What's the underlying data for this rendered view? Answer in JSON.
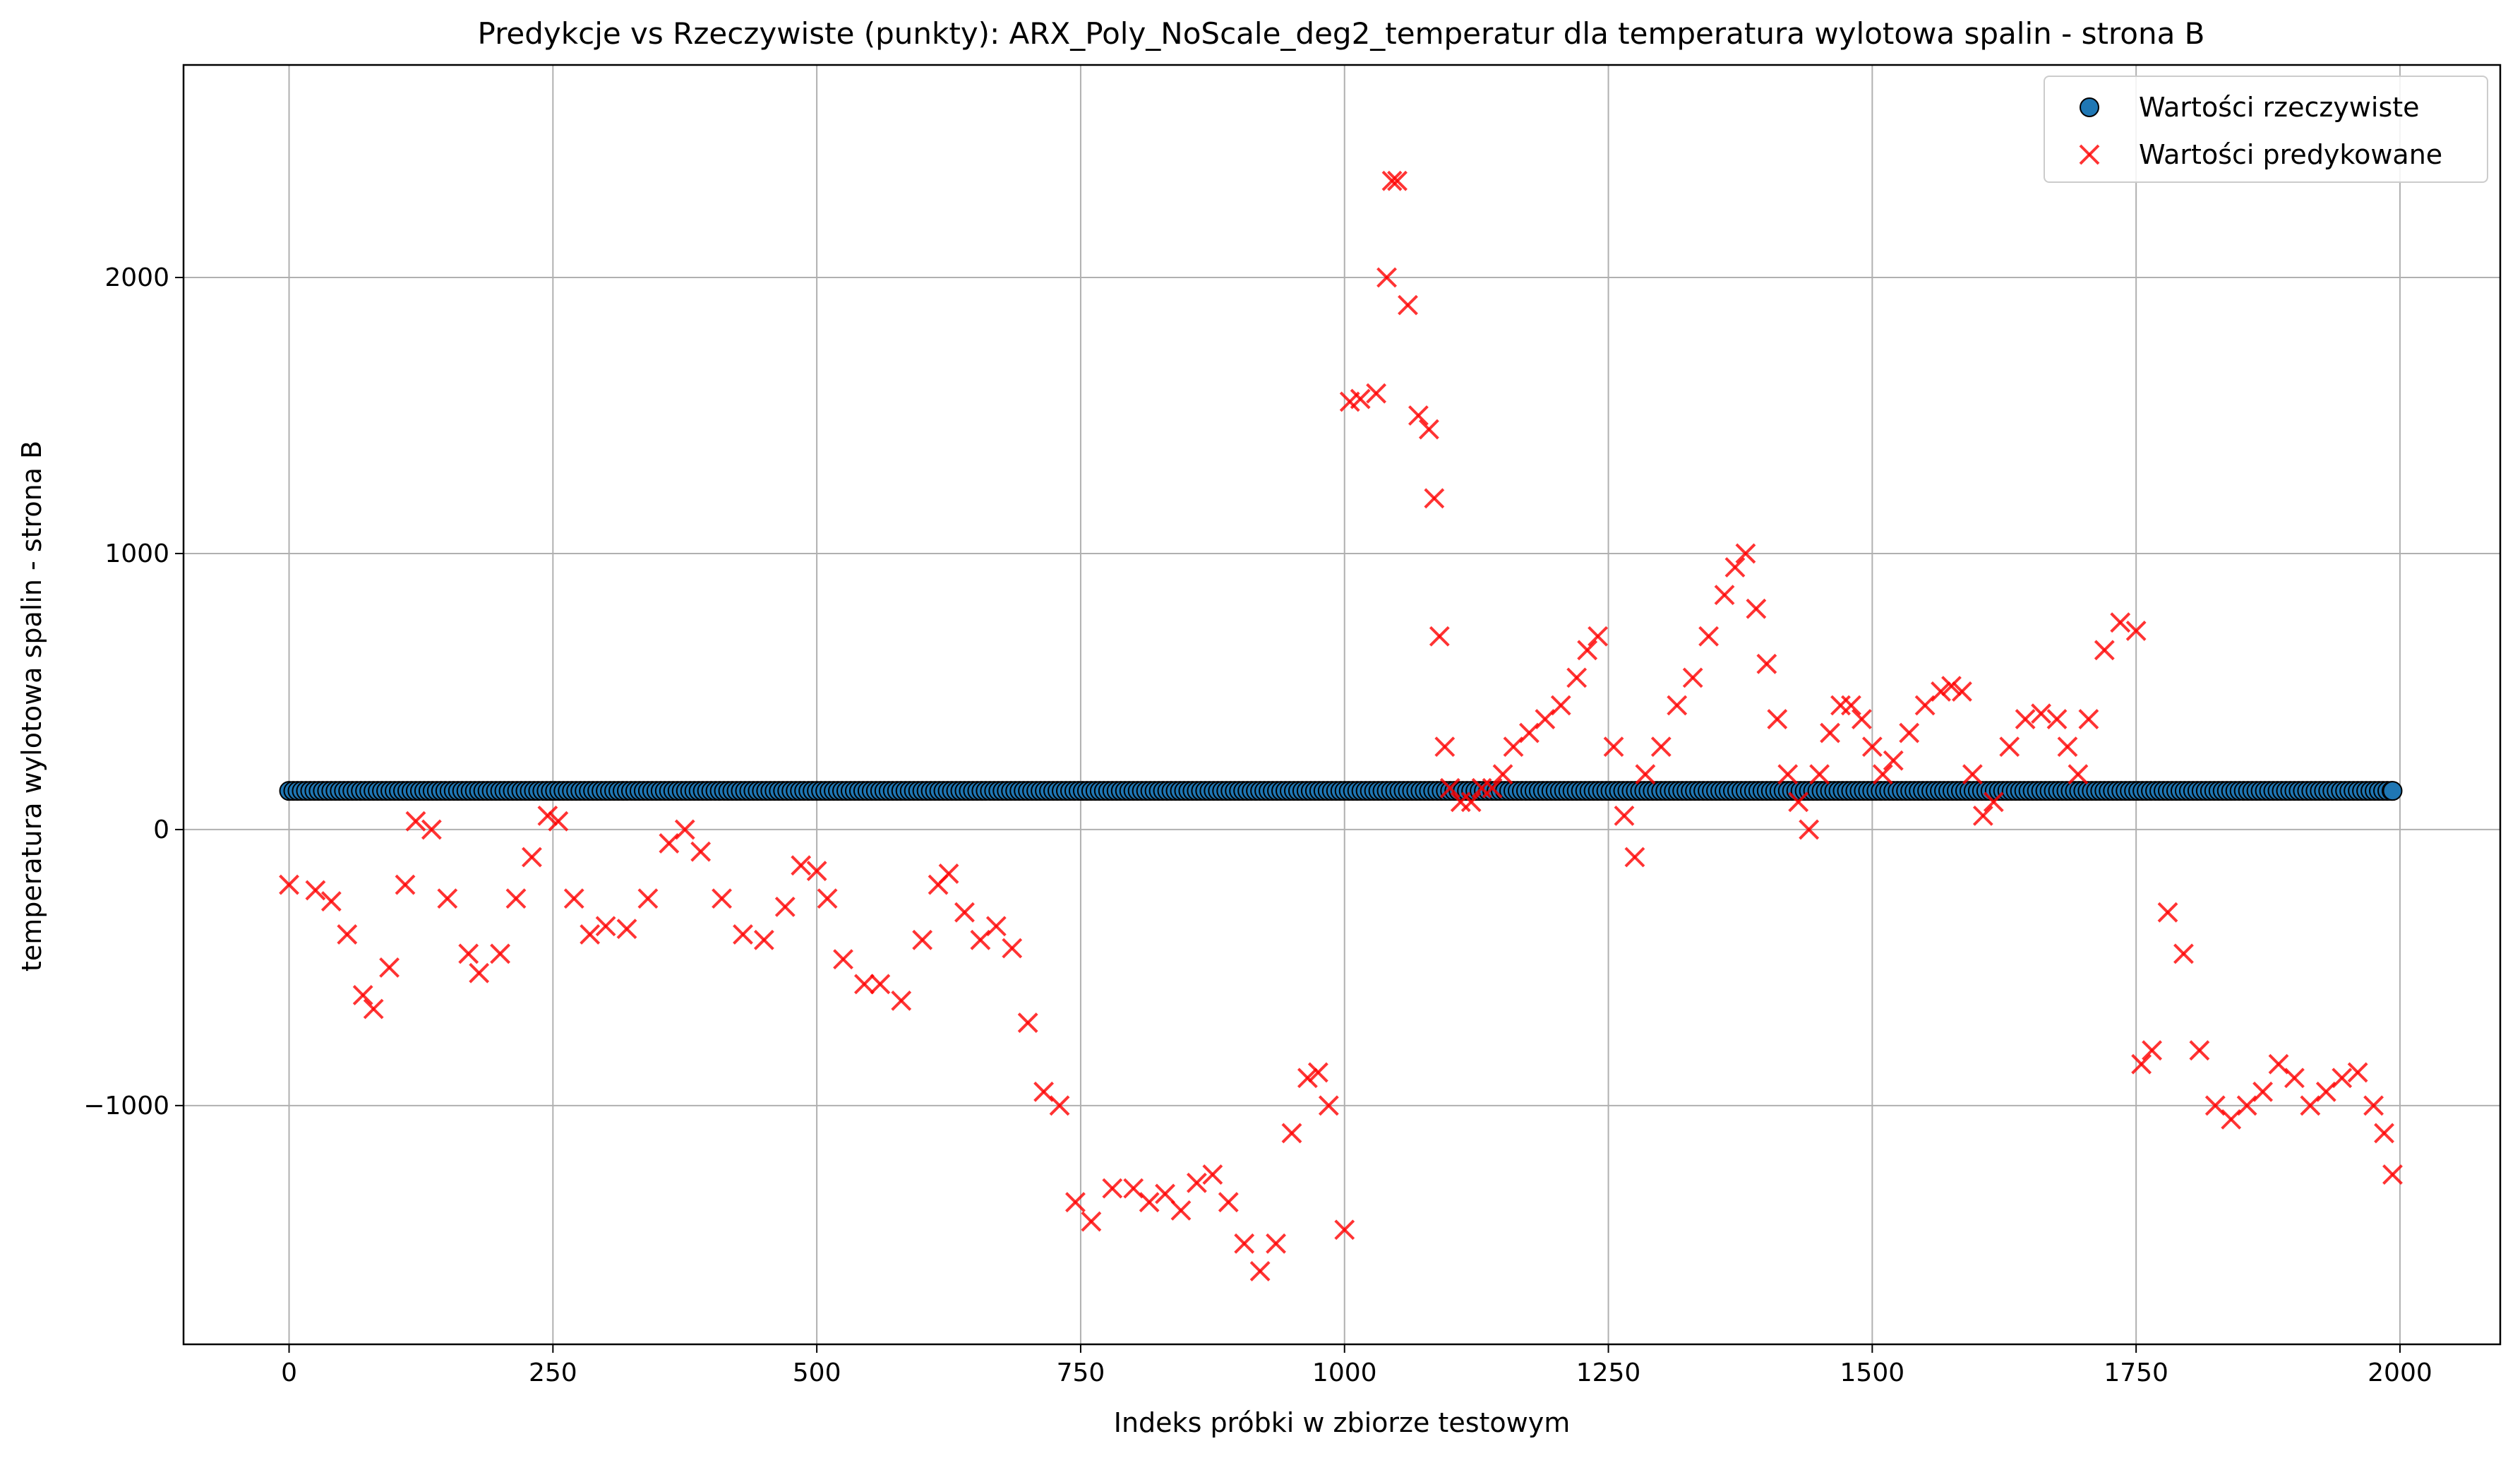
{
  "chart_data": {
    "type": "scatter",
    "title": "Predykcje vs Rzeczywiste (punkty): ARX_Poly_NoScale_deg2_temperatur dla temperatura wylotowa spalin - strona B",
    "xlabel": "Indeks próbki w zbiorze testowym",
    "ylabel": "temperatura wylotowa spalin - strona B",
    "xlim": [
      -100,
      2095
    ],
    "ylim": [
      -1865,
      2770
    ],
    "xticks": [
      0,
      250,
      500,
      750,
      1000,
      1250,
      1500,
      1750,
      2000
    ],
    "yticks": [
      -1000,
      0,
      1000,
      2000
    ],
    "xtick_labels": [
      "0",
      "250",
      "500",
      "750",
      "1000",
      "1250",
      "1500",
      "1750",
      "2000"
    ],
    "ytick_labels": [
      "−1000",
      "0",
      "1000",
      "2000"
    ],
    "grid": true,
    "legend_position": "top-right",
    "n_points": 1994,
    "series": [
      {
        "name": "Wartości rzeczywiste",
        "marker": "circle",
        "color": "#1f77b4",
        "edge_color": "#000000",
        "x_range": [
          0,
          1993
        ],
        "constant_y": 140
      },
      {
        "name": "Wartości predykowane",
        "marker": "x",
        "color": "#ff0000",
        "alpha": 0.8,
        "x": [
          0,
          25,
          40,
          55,
          70,
          80,
          95,
          110,
          120,
          135,
          150,
          170,
          180,
          200,
          215,
          230,
          245,
          255,
          270,
          285,
          300,
          320,
          340,
          360,
          375,
          390,
          410,
          430,
          450,
          470,
          485,
          500,
          510,
          525,
          545,
          560,
          580,
          600,
          615,
          625,
          640,
          655,
          670,
          685,
          700,
          715,
          730,
          745,
          760,
          780,
          800,
          815,
          830,
          845,
          860,
          875,
          890,
          905,
          920,
          935,
          950,
          965,
          975,
          985,
          1000,
          1005,
          1015,
          1030,
          1040,
          1045,
          1050,
          1060,
          1070,
          1080,
          1085,
          1090,
          1095,
          1100,
          1110,
          1120,
          1130,
          1140,
          1150,
          1160,
          1175,
          1190,
          1205,
          1220,
          1230,
          1240,
          1255,
          1265,
          1275,
          1285,
          1300,
          1315,
          1330,
          1345,
          1360,
          1370,
          1380,
          1390,
          1400,
          1410,
          1420,
          1430,
          1440,
          1450,
          1460,
          1470,
          1480,
          1490,
          1500,
          1510,
          1520,
          1535,
          1550,
          1565,
          1575,
          1585,
          1595,
          1605,
          1615,
          1630,
          1645,
          1660,
          1675,
          1685,
          1695,
          1705,
          1720,
          1735,
          1750,
          1755,
          1765,
          1780,
          1795,
          1810,
          1825,
          1840,
          1855,
          1870,
          1885,
          1900,
          1915,
          1930,
          1945,
          1960,
          1975,
          1985,
          1993
        ],
        "y": [
          -200,
          -220,
          -260,
          -380,
          -600,
          -650,
          -500,
          -200,
          30,
          0,
          -250,
          -450,
          -520,
          -450,
          -250,
          -100,
          50,
          30,
          -250,
          -380,
          -350,
          -360,
          -250,
          -50,
          0,
          -80,
          -250,
          -380,
          -400,
          -280,
          -130,
          -150,
          -250,
          -470,
          -560,
          -560,
          -620,
          -400,
          -200,
          -160,
          -300,
          -400,
          -350,
          -430,
          -700,
          -950,
          -1000,
          -1350,
          -1420,
          -1300,
          -1300,
          -1350,
          -1320,
          -1380,
          -1280,
          -1250,
          -1350,
          -1500,
          -1600,
          -1500,
          -1100,
          -900,
          -880,
          -1000,
          -1450,
          1550,
          1560,
          1580,
          2000,
          2350,
          2350,
          1900,
          1500,
          1450,
          1200,
          700,
          300,
          150,
          100,
          100,
          150,
          150,
          200,
          300,
          350,
          400,
          450,
          550,
          650,
          700,
          300,
          50,
          -100,
          200,
          300,
          450,
          550,
          700,
          850,
          950,
          1000,
          800,
          600,
          400,
          200,
          100,
          0,
          200,
          350,
          450,
          450,
          400,
          300,
          200,
          250,
          350,
          450,
          500,
          520,
          500,
          200,
          50,
          100,
          300,
          400,
          420,
          400,
          300,
          200,
          400,
          650,
          750,
          720,
          -850,
          -800,
          -300,
          -450,
          -800,
          -1000,
          -1050,
          -1000,
          -950,
          -850,
          -900,
          -1000,
          -950,
          -900,
          -880,
          -1000,
          -1100,
          -1250
        ]
      }
    ]
  }
}
